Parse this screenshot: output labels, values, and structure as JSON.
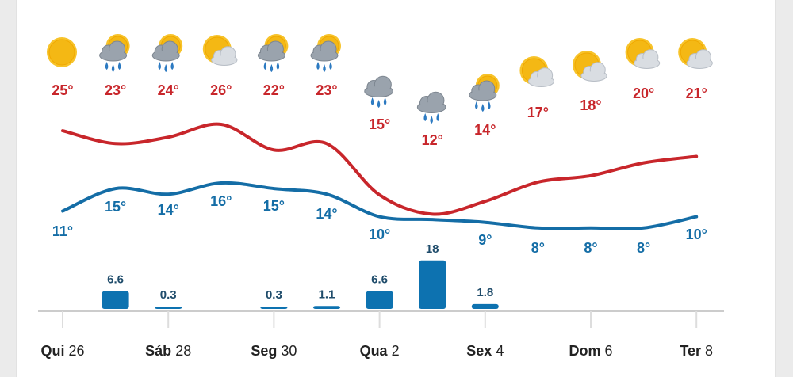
{
  "colors": {
    "high": "#c8262b",
    "low": "#146da6",
    "rain": "#0d72b0",
    "rain_label": "#1f4c6b",
    "day_label": "#222222",
    "axis": "#cccccc",
    "tick": "#dddddd"
  },
  "chart_data": {
    "type": "line",
    "x": [
      0,
      1,
      2,
      3,
      4,
      5,
      6,
      7,
      8,
      9,
      10,
      11,
      12
    ],
    "high_labels": [
      "25°",
      "23°",
      "24°",
      "26°",
      "22°",
      "23°",
      "15°",
      "12°",
      "14°",
      "17°",
      "18°",
      "20°",
      "21°"
    ],
    "low_labels": [
      "11°",
      "15°",
      "14°",
      "16°",
      "15°",
      "14°",
      "10°",
      "",
      "9°",
      "8°",
      "8°",
      "8°",
      "10°"
    ],
    "series": [
      {
        "values": [
          25,
          23,
          24,
          26,
          22,
          23,
          15,
          12,
          14,
          17,
          18,
          20,
          21
        ]
      },
      {
        "values": [
          11,
          15,
          14,
          16,
          15,
          14,
          10,
          9.5,
          9,
          8,
          8,
          8,
          10
        ]
      }
    ],
    "icons": [
      "sun-icon",
      "sun-cloud-rain-icon",
      "sun-cloud-rain-icon",
      "sun-cloud-icon",
      "sun-cloud-rain-icon",
      "sun-cloud-rain-icon",
      "cloud-rain-icon",
      "cloud-rain-icon",
      "sun-cloud-rain-icon",
      "sun-cloud-icon",
      "sun-cloud-icon",
      "sun-cloud-icon",
      "sun-cloud-icon"
    ],
    "rain": {
      "values": [
        null,
        6.6,
        0.3,
        null,
        0.3,
        1.1,
        6.6,
        18,
        1.8,
        null,
        null,
        null,
        null
      ],
      "labels": [
        "",
        "6.6",
        "0.3",
        "",
        "0.3",
        "1.1",
        "6.6",
        "18",
        "1.8",
        "",
        "",
        "",
        ""
      ]
    },
    "x_ticks": [
      {
        "name": "Qui",
        "num": "26"
      },
      {
        "name": "Sáb",
        "num": "28"
      },
      {
        "name": "Seg",
        "num": "30"
      },
      {
        "name": "Qua",
        "num": "2"
      },
      {
        "name": "Sex",
        "num": "4"
      },
      {
        "name": "Dom",
        "num": "6"
      },
      {
        "name": "Ter",
        "num": "8"
      }
    ]
  }
}
